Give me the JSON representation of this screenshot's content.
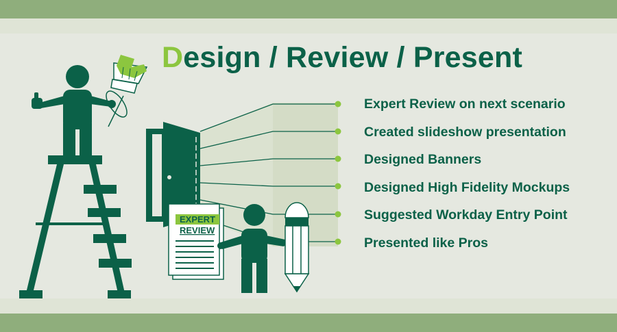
{
  "title": {
    "first_letter": "D",
    "rest": "esign / Review / Present"
  },
  "items": [
    "Expert Review on next scenario",
    "Created slideshow presentation",
    "Designed Banners",
    "Designed High Fidelity Mockups",
    "Suggested Workday Entry Point",
    "Presented like Pros"
  ],
  "document": {
    "line1": "EXPERT",
    "line2": "REVIEW"
  },
  "colors": {
    "dark_green": "#0b6148",
    "accent_green": "#8cc63f",
    "band_green": "#8fae7c",
    "panel_green": "#d4dcc6",
    "background": "#e5e8e0"
  }
}
